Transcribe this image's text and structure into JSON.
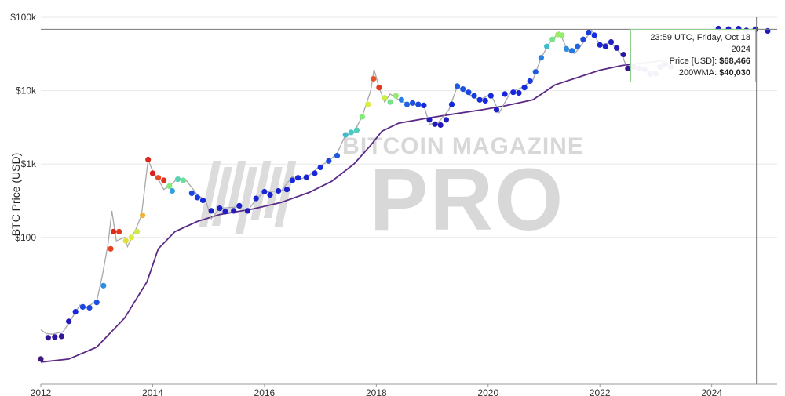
{
  "chart_data": {
    "type": "scatter",
    "ylabel": "BTC Price (USD)",
    "yscale": "log",
    "ylim": [
      1,
      100000
    ],
    "xlim": [
      2012.0,
      2025.17
    ],
    "yticks": [
      {
        "v": 100,
        "label": "$100"
      },
      {
        "v": 1000,
        "label": "$1k"
      },
      {
        "v": 10000,
        "label": "$10k"
      },
      {
        "v": 100000,
        "label": "$100k"
      }
    ],
    "xticks": [
      {
        "v": 2012,
        "label": "2012"
      },
      {
        "v": 2014,
        "label": "2014"
      },
      {
        "v": 2016,
        "label": "2016"
      },
      {
        "v": 2018,
        "label": "2018"
      },
      {
        "v": 2020,
        "label": "2020"
      },
      {
        "v": 2022,
        "label": "2022"
      },
      {
        "v": 2024,
        "label": "2024"
      }
    ],
    "watermark": [
      "BITCOIN MAGAZINE",
      "PRO"
    ],
    "crosshair": {
      "x": 2024.8,
      "y": 68466
    },
    "tooltip": {
      "time": "23:59 UTC, Friday, Oct 18 2024",
      "price_label": "Price [USD]:",
      "price": "$68,466",
      "wma_label": "200WMA:",
      "wma": "$40,030"
    },
    "price_line": [
      [
        2012.0,
        5.5
      ],
      [
        2012.1,
        4.9
      ],
      [
        2012.2,
        4.8
      ],
      [
        2012.4,
        5.2
      ],
      [
        2012.6,
        9
      ],
      [
        2012.7,
        12
      ],
      [
        2012.8,
        11
      ],
      [
        2013.0,
        13.5
      ],
      [
        2013.1,
        30
      ],
      [
        2013.2,
        80
      ],
      [
        2013.27,
        230
      ],
      [
        2013.35,
        90
      ],
      [
        2013.5,
        100
      ],
      [
        2013.55,
        75
      ],
      [
        2013.7,
        130
      ],
      [
        2013.8,
        200
      ],
      [
        2013.92,
        1150
      ],
      [
        2014.0,
        800
      ],
      [
        2014.1,
        620
      ],
      [
        2014.2,
        450
      ],
      [
        2014.3,
        500
      ],
      [
        2014.45,
        640
      ],
      [
        2014.6,
        600
      ],
      [
        2014.8,
        380
      ],
      [
        2014.95,
        320
      ],
      [
        2015.05,
        180
      ],
      [
        2015.2,
        250
      ],
      [
        2015.5,
        260
      ],
      [
        2015.7,
        230
      ],
      [
        2015.85,
        330
      ],
      [
        2016.0,
        420
      ],
      [
        2016.3,
        430
      ],
      [
        2016.5,
        680
      ],
      [
        2016.6,
        600
      ],
      [
        2016.8,
        700
      ],
      [
        2017.0,
        950
      ],
      [
        2017.15,
        1100
      ],
      [
        2017.3,
        1400
      ],
      [
        2017.45,
        2500
      ],
      [
        2017.6,
        2700
      ],
      [
        2017.75,
        4500
      ],
      [
        2017.9,
        10000
      ],
      [
        2017.96,
        19500
      ],
      [
        2018.05,
        11000
      ],
      [
        2018.15,
        7000
      ],
      [
        2018.25,
        9000
      ],
      [
        2018.4,
        7500
      ],
      [
        2018.6,
        6500
      ],
      [
        2018.85,
        6300
      ],
      [
        2018.95,
        3500
      ],
      [
        2019.1,
        3600
      ],
      [
        2019.3,
        5500
      ],
      [
        2019.45,
        11500
      ],
      [
        2019.55,
        10000
      ],
      [
        2019.7,
        8500
      ],
      [
        2019.85,
        7500
      ],
      [
        2020.05,
        9000
      ],
      [
        2020.2,
        5000
      ],
      [
        2020.4,
        9500
      ],
      [
        2020.6,
        11000
      ],
      [
        2020.8,
        14000
      ],
      [
        2020.95,
        28000
      ],
      [
        2021.1,
        45000
      ],
      [
        2021.28,
        63000
      ],
      [
        2021.42,
        35000
      ],
      [
        2021.55,
        32000
      ],
      [
        2021.7,
        45000
      ],
      [
        2021.85,
        67000
      ],
      [
        2022.0,
        42000
      ],
      [
        2022.2,
        45000
      ],
      [
        2022.4,
        30000
      ],
      [
        2022.5,
        19000
      ],
      [
        2022.7,
        20000
      ],
      [
        2022.9,
        16500
      ],
      [
        2023.05,
        22000
      ],
      [
        2023.2,
        27000
      ]
    ],
    "wma_line": [
      [
        2012.0,
        2.0
      ],
      [
        2012.5,
        2.2
      ],
      [
        2013.0,
        3.2
      ],
      [
        2013.5,
        8
      ],
      [
        2013.9,
        25
      ],
      [
        2014.1,
        70
      ],
      [
        2014.4,
        120
      ],
      [
        2014.8,
        165
      ],
      [
        2015.2,
        205
      ],
      [
        2015.8,
        245
      ],
      [
        2016.3,
        300
      ],
      [
        2016.8,
        410
      ],
      [
        2017.2,
        580
      ],
      [
        2017.6,
        1000
      ],
      [
        2017.9,
        1800
      ],
      [
        2018.1,
        2800
      ],
      [
        2018.4,
        3600
      ],
      [
        2018.9,
        4200
      ],
      [
        2019.3,
        4700
      ],
      [
        2019.9,
        5500
      ],
      [
        2020.3,
        6200
      ],
      [
        2020.8,
        7500
      ],
      [
        2021.0,
        9500
      ],
      [
        2021.2,
        12000
      ],
      [
        2021.7,
        16000
      ],
      [
        2022.0,
        19000
      ],
      [
        2022.4,
        22000
      ],
      [
        2022.8,
        24000
      ],
      [
        2023.2,
        26000
      ]
    ],
    "price_dots": [
      [
        2012.0,
        2.2,
        0.02
      ],
      [
        2012.13,
        4.3,
        0.08
      ],
      [
        2012.25,
        4.4,
        0.1
      ],
      [
        2012.37,
        4.5,
        0.07
      ],
      [
        2012.5,
        7.2,
        0.15
      ],
      [
        2012.62,
        9.7,
        0.25
      ],
      [
        2012.75,
        11.3,
        0.3
      ],
      [
        2012.87,
        11.0,
        0.3
      ],
      [
        2013.0,
        13.0,
        0.32
      ],
      [
        2013.12,
        22,
        0.42
      ],
      [
        2013.25,
        70,
        0.95
      ],
      [
        2013.3,
        120,
        0.98
      ],
      [
        2013.4,
        120,
        0.96
      ],
      [
        2013.52,
        90,
        0.74
      ],
      [
        2013.62,
        100,
        0.72
      ],
      [
        2013.72,
        120,
        0.7
      ],
      [
        2013.82,
        200,
        0.82
      ],
      [
        2013.92,
        1150,
        0.98
      ],
      [
        2014.0,
        750,
        0.99
      ],
      [
        2014.1,
        650,
        0.94
      ],
      [
        2014.2,
        600,
        0.97
      ],
      [
        2014.3,
        500,
        0.62
      ],
      [
        2014.35,
        430,
        0.45
      ],
      [
        2014.45,
        620,
        0.55
      ],
      [
        2014.55,
        600,
        0.58
      ],
      [
        2014.7,
        400,
        0.3
      ],
      [
        2014.8,
        350,
        0.28
      ],
      [
        2014.9,
        320,
        0.25
      ],
      [
        2015.05,
        230,
        0.2
      ],
      [
        2015.2,
        250,
        0.2
      ],
      [
        2015.3,
        225,
        0.18
      ],
      [
        2015.45,
        230,
        0.18
      ],
      [
        2015.55,
        270,
        0.2
      ],
      [
        2015.7,
        230,
        0.18
      ],
      [
        2015.85,
        340,
        0.22
      ],
      [
        2016.0,
        420,
        0.24
      ],
      [
        2016.1,
        380,
        0.22
      ],
      [
        2016.25,
        430,
        0.22
      ],
      [
        2016.4,
        450,
        0.2
      ],
      [
        2016.5,
        600,
        0.25
      ],
      [
        2016.6,
        650,
        0.24
      ],
      [
        2016.75,
        660,
        0.22
      ],
      [
        2016.9,
        750,
        0.24
      ],
      [
        2017.0,
        900,
        0.26
      ],
      [
        2017.15,
        1100,
        0.3
      ],
      [
        2017.3,
        1300,
        0.33
      ],
      [
        2017.45,
        2500,
        0.5
      ],
      [
        2017.55,
        2700,
        0.52
      ],
      [
        2017.65,
        2900,
        0.54
      ],
      [
        2017.75,
        4400,
        0.62
      ],
      [
        2017.85,
        6500,
        0.72
      ],
      [
        2017.95,
        14500,
        0.93
      ],
      [
        2018.05,
        11000,
        0.96
      ],
      [
        2018.15,
        8000,
        0.7
      ],
      [
        2018.25,
        7000,
        0.6
      ],
      [
        2018.35,
        8500,
        0.64
      ],
      [
        2018.45,
        7500,
        0.4
      ],
      [
        2018.55,
        6500,
        0.35
      ],
      [
        2018.65,
        6800,
        0.32
      ],
      [
        2018.75,
        6500,
        0.3
      ],
      [
        2018.85,
        6300,
        0.25
      ],
      [
        2018.95,
        4000,
        0.18
      ],
      [
        2019.05,
        3500,
        0.16
      ],
      [
        2019.15,
        3400,
        0.15
      ],
      [
        2019.25,
        4000,
        0.18
      ],
      [
        2019.35,
        6500,
        0.25
      ],
      [
        2019.45,
        11500,
        0.33
      ],
      [
        2019.55,
        10500,
        0.32
      ],
      [
        2019.65,
        9500,
        0.3
      ],
      [
        2019.75,
        8500,
        0.28
      ],
      [
        2019.85,
        7500,
        0.26
      ],
      [
        2019.95,
        7300,
        0.24
      ],
      [
        2020.05,
        8500,
        0.25
      ],
      [
        2020.15,
        5500,
        0.2
      ],
      [
        2020.3,
        9000,
        0.24
      ],
      [
        2020.45,
        9500,
        0.24
      ],
      [
        2020.55,
        9300,
        0.24
      ],
      [
        2020.65,
        11000,
        0.26
      ],
      [
        2020.75,
        13500,
        0.28
      ],
      [
        2020.85,
        18000,
        0.33
      ],
      [
        2020.95,
        28000,
        0.4
      ],
      [
        2021.05,
        40000,
        0.5
      ],
      [
        2021.15,
        50000,
        0.6
      ],
      [
        2021.25,
        58000,
        0.65
      ],
      [
        2021.32,
        57000,
        0.64
      ],
      [
        2021.4,
        37000,
        0.42
      ],
      [
        2021.5,
        35000,
        0.38
      ],
      [
        2021.6,
        40000,
        0.35
      ],
      [
        2021.7,
        50000,
        0.3
      ],
      [
        2021.8,
        62000,
        0.28
      ],
      [
        2021.9,
        57000,
        0.26
      ],
      [
        2022.0,
        42000,
        0.22
      ],
      [
        2022.1,
        40000,
        0.2
      ],
      [
        2022.2,
        46000,
        0.2
      ],
      [
        2022.3,
        38000,
        0.16
      ],
      [
        2022.42,
        31000,
        0.12
      ],
      [
        2022.5,
        20000,
        0.06
      ],
      [
        2022.6,
        21000,
        0.05
      ],
      [
        2022.7,
        20000,
        0.05
      ],
      [
        2022.8,
        19500,
        0.05
      ],
      [
        2022.9,
        16800,
        0.04
      ],
      [
        2023.0,
        17000,
        0.04
      ],
      [
        2023.08,
        21000,
        0.05
      ],
      [
        2023.17,
        23000,
        0.06
      ],
      [
        2023.27,
        21000,
        0.06
      ],
      [
        2024.12,
        70000,
        0.2
      ],
      [
        2024.3,
        69000,
        0.2
      ],
      [
        2024.48,
        70000,
        0.2
      ],
      [
        2024.62,
        66000,
        0.18
      ],
      [
        2024.78,
        68466,
        0.18
      ],
      [
        2025.0,
        65000,
        0.18
      ]
    ]
  }
}
